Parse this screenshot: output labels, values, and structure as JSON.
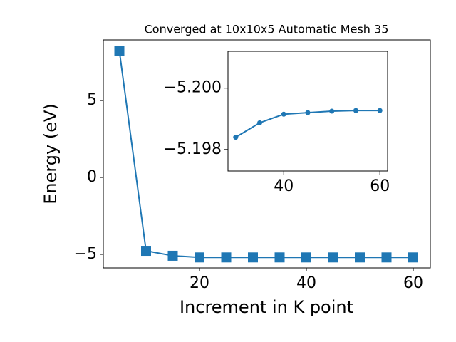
{
  "chart_data": [
    {
      "type": "line",
      "title": "Converged at 10x10x5 Automatic Mesh 35",
      "x_label": "Increment in K point",
      "y_label": "Energy (eV)",
      "x": [
        5,
        10,
        15,
        20,
        25,
        30,
        35,
        40,
        45,
        50,
        55,
        60
      ],
      "series": [
        {
          "color": "#1f77b4",
          "marker": "square",
          "values": [
            8.24,
            -4.77,
            -5.09,
            -5.199,
            -5.199,
            -5.1984,
            -5.1989,
            -5.1992,
            -5.1992,
            -5.1993,
            -5.1993,
            -5.1993
          ]
        }
      ],
      "xlim": [
        2,
        63.2
      ],
      "ylim": [
        -5.88,
        8.94
      ],
      "xticks": [
        20,
        40,
        60
      ],
      "yticks": [
        {
          "value": -5,
          "label": "−5"
        },
        0,
        5
      ]
    },
    {
      "type": "line",
      "x": [
        30,
        35,
        40,
        45,
        50,
        55,
        60
      ],
      "series": [
        {
          "color": "#1f77b4",
          "marker": "circle",
          "values": [
            -5.1984,
            -5.19887,
            -5.19915,
            -5.1992,
            -5.19925,
            -5.19927,
            -5.19927
          ]
        }
      ],
      "xlim": [
        28.4,
        61.6
      ],
      "ylim": [
        -5.1973,
        -5.2012
      ],
      "xticks": [
        40,
        60
      ],
      "yticks": [
        {
          "value": -5.198,
          "label": "−5.198"
        },
        {
          "value": -5.2,
          "label": "−5.200"
        }
      ]
    }
  ]
}
